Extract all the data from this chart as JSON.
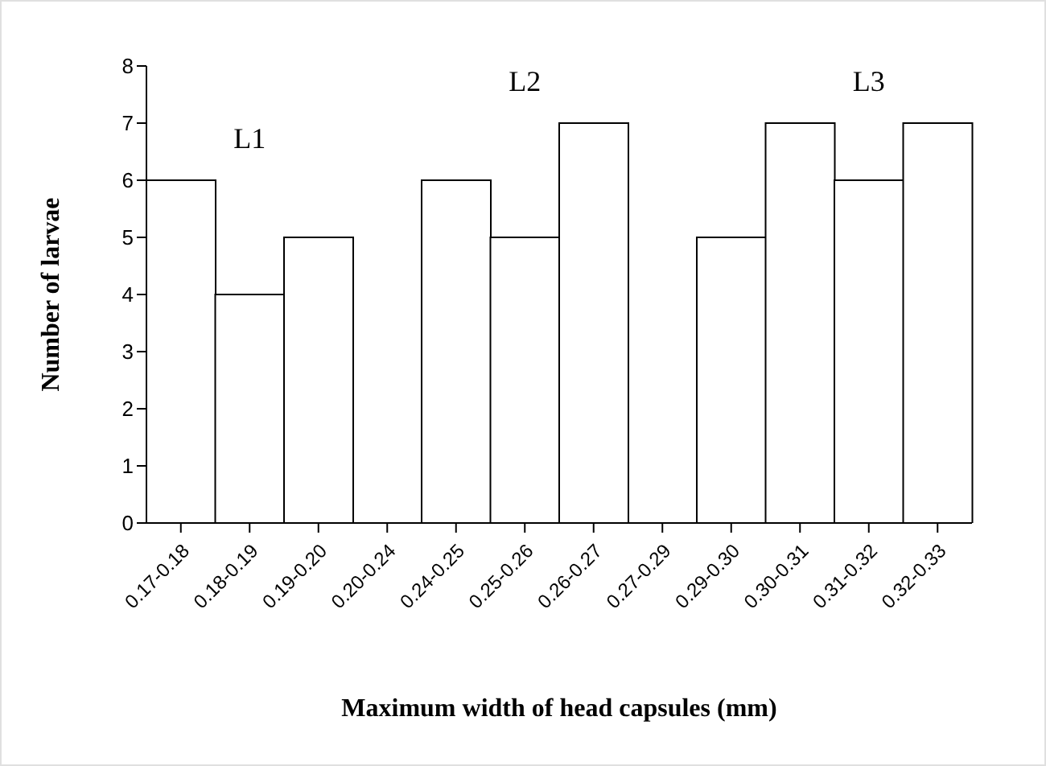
{
  "chart_data": {
    "type": "bar",
    "xlabel": "Maximum width of head capsules (mm)",
    "ylabel": "Number of larvae",
    "categories": [
      "0.17-0.18",
      "0.18-0.19",
      "0.19-0.20",
      "0.20-0.24",
      "0.24-0.25",
      "0.25-0.26",
      "0.26-0.27",
      "0.27-0.29",
      "0.29-0.30",
      "0.30-0.31",
      "0.31-0.32",
      "0.32-0.33"
    ],
    "values": [
      6,
      4,
      5,
      0,
      6,
      5,
      7,
      0,
      5,
      7,
      6,
      7
    ],
    "color": "#ffffff",
    "ylim": [
      0,
      8
    ],
    "yticks": [
      0,
      1,
      2,
      3,
      4,
      5,
      6,
      7,
      8
    ],
    "grid": false,
    "legend": false,
    "annotations": [
      "L1",
      "L2",
      "L3"
    ]
  }
}
